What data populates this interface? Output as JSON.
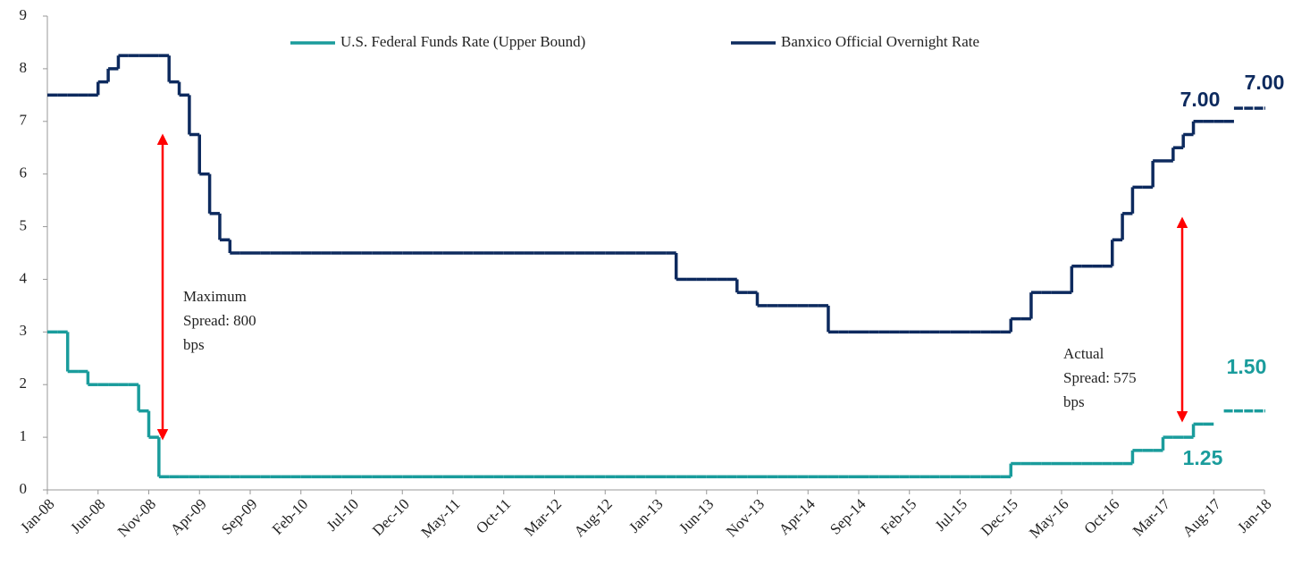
{
  "chart_data": {
    "type": "step-line",
    "categories": [
      "Jan-08",
      null,
      null,
      null,
      null,
      "Jun-08",
      null,
      null,
      null,
      null,
      "Nov-08",
      null,
      null,
      null,
      null,
      "Apr-09",
      null,
      null,
      null,
      null,
      "Sep-09",
      null,
      null,
      null,
      null,
      "Feb-10",
      null,
      null,
      null,
      null,
      "Jul-10",
      null,
      null,
      null,
      null,
      "Dec-10",
      null,
      null,
      null,
      null,
      "May-11",
      null,
      null,
      null,
      null,
      "Oct-11",
      null,
      null,
      null,
      null,
      "Mar-12",
      null,
      null,
      null,
      null,
      "Aug-12",
      null,
      null,
      null,
      null,
      "Jan-13",
      null,
      null,
      null,
      null,
      "Jun-13",
      null,
      null,
      null,
      null,
      "Nov-13",
      null,
      null,
      null,
      null,
      "Apr-14",
      null,
      null,
      null,
      null,
      "Sep-14",
      null,
      null,
      null,
      null,
      "Feb-15",
      null,
      null,
      null,
      null,
      "Jul-15",
      null,
      null,
      null,
      null,
      "Dec-15",
      null,
      null,
      null,
      null,
      "May-16",
      null,
      null,
      null,
      null,
      "Oct-16",
      null,
      null,
      null,
      null,
      "Mar-17",
      null,
      null,
      null,
      null,
      "Aug-17",
      null,
      null,
      null,
      null,
      "Jan-18"
    ],
    "series": [
      {
        "name": "U.S. Federal Funds Rate (Upper Bound)",
        "color": "#1a9c9c",
        "values": [
          3,
          3,
          2.25,
          2.25,
          2,
          2,
          2,
          2,
          2,
          1.5,
          1,
          0.25,
          0.25,
          0.25,
          0.25,
          0.25,
          0.25,
          0.25,
          0.25,
          0.25,
          0.25,
          0.25,
          0.25,
          0.25,
          0.25,
          0.25,
          0.25,
          0.25,
          0.25,
          0.25,
          0.25,
          0.25,
          0.25,
          0.25,
          0.25,
          0.25,
          0.25,
          0.25,
          0.25,
          0.25,
          0.25,
          0.25,
          0.25,
          0.25,
          0.25,
          0.25,
          0.25,
          0.25,
          0.25,
          0.25,
          0.25,
          0.25,
          0.25,
          0.25,
          0.25,
          0.25,
          0.25,
          0.25,
          0.25,
          0.25,
          0.25,
          0.25,
          0.25,
          0.25,
          0.25,
          0.25,
          0.25,
          0.25,
          0.25,
          0.25,
          0.25,
          0.25,
          0.25,
          0.25,
          0.25,
          0.25,
          0.25,
          0.25,
          0.25,
          0.25,
          0.25,
          0.25,
          0.25,
          0.25,
          0.25,
          0.25,
          0.25,
          0.25,
          0.25,
          0.25,
          0.25,
          0.25,
          0.25,
          0.25,
          0.25,
          0.5,
          0.5,
          0.5,
          0.5,
          0.5,
          0.5,
          0.5,
          0.5,
          0.5,
          0.5,
          0.5,
          0.5,
          0.75,
          0.75,
          0.75,
          1,
          1,
          1,
          1.25,
          1.25,
          null,
          null,
          null,
          null,
          null,
          null
        ],
        "projection_values": [
          null,
          null,
          null,
          null,
          null,
          null,
          null,
          null,
          null,
          null,
          null,
          null,
          null,
          null,
          null,
          null,
          null,
          null,
          null,
          null,
          null,
          null,
          null,
          null,
          null,
          null,
          null,
          null,
          null,
          null,
          null,
          null,
          null,
          null,
          null,
          null,
          null,
          null,
          null,
          null,
          null,
          null,
          null,
          null,
          null,
          null,
          null,
          null,
          null,
          null,
          null,
          null,
          null,
          null,
          null,
          null,
          null,
          null,
          null,
          null,
          null,
          null,
          null,
          null,
          null,
          null,
          null,
          null,
          null,
          null,
          null,
          null,
          null,
          null,
          null,
          null,
          null,
          null,
          null,
          null,
          null,
          null,
          null,
          null,
          null,
          null,
          null,
          null,
          null,
          null,
          null,
          null,
          null,
          null,
          null,
          null,
          null,
          null,
          null,
          null,
          null,
          null,
          null,
          null,
          null,
          null,
          null,
          null,
          null,
          null,
          null,
          null,
          null,
          null,
          null,
          null,
          1.5,
          1.5,
          1.5,
          1.5,
          1.5
        ]
      },
      {
        "name": "Banxico Official Overnight Rate",
        "color": "#0d2a5e",
        "values": [
          7.5,
          7.5,
          7.5,
          7.5,
          7.5,
          7.75,
          8,
          8.25,
          8.25,
          8.25,
          8.25,
          8.25,
          7.75,
          7.5,
          6.75,
          6,
          5.25,
          4.75,
          4.5,
          4.5,
          4.5,
          4.5,
          4.5,
          4.5,
          4.5,
          4.5,
          4.5,
          4.5,
          4.5,
          4.5,
          4.5,
          4.5,
          4.5,
          4.5,
          4.5,
          4.5,
          4.5,
          4.5,
          4.5,
          4.5,
          4.5,
          4.5,
          4.5,
          4.5,
          4.5,
          4.5,
          4.5,
          4.5,
          4.5,
          4.5,
          4.5,
          4.5,
          4.5,
          4.5,
          4.5,
          4.5,
          4.5,
          4.5,
          4.5,
          4.5,
          4.5,
          4.5,
          4,
          4,
          4,
          4,
          4,
          4,
          3.75,
          3.75,
          3.5,
          3.5,
          3.5,
          3.5,
          3.5,
          3.5,
          3.5,
          3,
          3,
          3,
          3,
          3,
          3,
          3,
          3,
          3,
          3,
          3,
          3,
          3,
          3,
          3,
          3,
          3,
          3,
          3.25,
          3.25,
          3.75,
          3.75,
          3.75,
          3.75,
          4.25,
          4.25,
          4.25,
          4.25,
          4.75,
          5.25,
          5.75,
          5.75,
          6.25,
          6.25,
          6.5,
          6.75,
          7,
          7,
          7,
          7,
          null,
          null,
          null,
          null
        ],
        "projection_values": [
          null,
          null,
          null,
          null,
          null,
          null,
          null,
          null,
          null,
          null,
          null,
          null,
          null,
          null,
          null,
          null,
          null,
          null,
          null,
          null,
          null,
          null,
          null,
          null,
          null,
          null,
          null,
          null,
          null,
          null,
          null,
          null,
          null,
          null,
          null,
          null,
          null,
          null,
          null,
          null,
          null,
          null,
          null,
          null,
          null,
          null,
          null,
          null,
          null,
          null,
          null,
          null,
          null,
          null,
          null,
          null,
          null,
          null,
          null,
          null,
          null,
          null,
          null,
          null,
          null,
          null,
          null,
          null,
          null,
          null,
          null,
          null,
          null,
          null,
          null,
          null,
          null,
          null,
          null,
          null,
          null,
          null,
          null,
          null,
          null,
          null,
          null,
          null,
          null,
          null,
          null,
          null,
          null,
          null,
          null,
          null,
          null,
          null,
          null,
          null,
          null,
          null,
          null,
          null,
          null,
          null,
          null,
          null,
          null,
          null,
          null,
          null,
          null,
          null,
          null,
          null,
          null,
          7.25,
          7.25,
          7.25,
          7.25
        ]
      }
    ],
    "ylim": [
      0,
      9
    ],
    "yticks": [
      0,
      1,
      2,
      3,
      4,
      5,
      6,
      7,
      8,
      9
    ],
    "grid": false,
    "legend": "top",
    "annotations": [
      {
        "text": "7.00",
        "color": "#0d2a5e"
      },
      {
        "text": "7.00",
        "color": "#0d2a5e"
      },
      {
        "text": "1.50",
        "color": "#1a9c9c"
      },
      {
        "text": "1.25",
        "color": "#1a9c9c"
      },
      {
        "lines": [
          "Maximum",
          "Spread: 800",
          "bps"
        ]
      },
      {
        "lines": [
          "Actual",
          "Spread: 575",
          "bps"
        ]
      }
    ]
  }
}
